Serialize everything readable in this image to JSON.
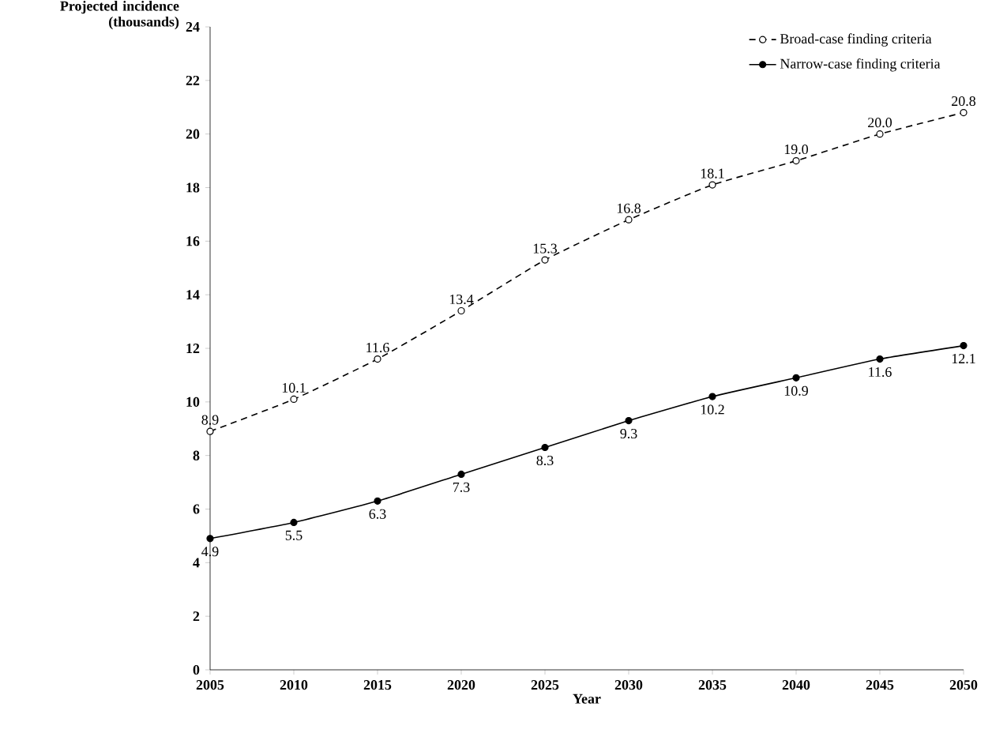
{
  "chart_data": {
    "type": "line",
    "xlabel": "Year",
    "ylabel": "Projected incidence (thousands)",
    "x": [
      2005,
      2010,
      2015,
      2020,
      2025,
      2030,
      2035,
      2040,
      2045,
      2050
    ],
    "series": [
      {
        "name": "Broad-case finding criteria",
        "color": "#000000",
        "line_style": "dashed",
        "marker": "circle",
        "values": [
          8.9,
          10.1,
          11.6,
          13.4,
          15.3,
          16.8,
          18.1,
          19.0,
          20.0,
          20.8
        ],
        "value_labels": [
          "8.9",
          "10.1",
          "11.6",
          "13.4",
          "15.3",
          "16.8",
          "18.1",
          "19.0",
          "20.0",
          "20.8"
        ]
      },
      {
        "name": "Narrow-case finding criteria",
        "color": "#000000",
        "line_style": "solid",
        "marker": "circle",
        "values": [
          4.9,
          5.5,
          6.3,
          7.3,
          8.3,
          9.3,
          10.2,
          10.9,
          11.6,
          12.1
        ],
        "value_labels": [
          "4.9",
          "5.5",
          "6.3",
          "7.3",
          "8.3",
          "9.3",
          "10.2",
          "10.9",
          "11.6",
          "12.1"
        ]
      }
    ],
    "xlim": [
      2005,
      2050
    ],
    "xticks": [
      2005,
      2010,
      2015,
      2020,
      2025,
      2030,
      2035,
      2040,
      2045,
      2050
    ],
    "ylim": [
      0,
      24
    ],
    "yticks": [
      0,
      2,
      4,
      6,
      8,
      10,
      12,
      14,
      16,
      18,
      20,
      22,
      24
    ],
    "legend": "top right",
    "grid": false
  }
}
